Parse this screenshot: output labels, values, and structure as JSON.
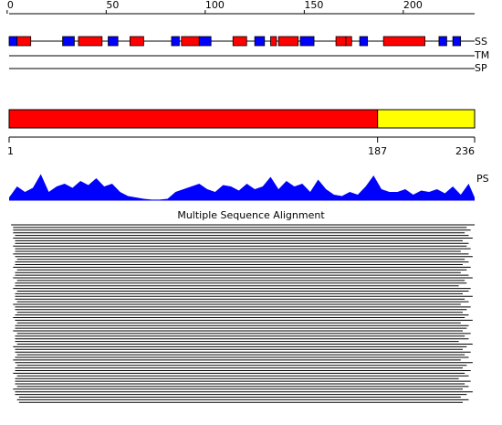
{
  "ruler": {
    "ticks": [
      0,
      50,
      100,
      150,
      200
    ]
  },
  "ss": {
    "label": "SS",
    "elements": [
      {
        "start": 1,
        "end": 4,
        "color": "#0000ff"
      },
      {
        "start": 5,
        "end": 11,
        "color": "#ff0000"
      },
      {
        "start": 28,
        "end": 33,
        "color": "#0000ff"
      },
      {
        "start": 36,
        "end": 47,
        "color": "#ff0000"
      },
      {
        "start": 51,
        "end": 55,
        "color": "#0000ff"
      },
      {
        "start": 62,
        "end": 68,
        "color": "#ff0000"
      },
      {
        "start": 83,
        "end": 86,
        "color": "#0000ff"
      },
      {
        "start": 88,
        "end": 96,
        "color": "#ff0000"
      },
      {
        "start": 97,
        "end": 102,
        "color": "#0000ff"
      },
      {
        "start": 114,
        "end": 120,
        "color": "#ff0000"
      },
      {
        "start": 125,
        "end": 129,
        "color": "#0000ff"
      },
      {
        "start": 133,
        "end": 135,
        "color": "#ff0000"
      },
      {
        "start": 137,
        "end": 146,
        "color": "#ff0000"
      },
      {
        "start": 148,
        "end": 154,
        "color": "#0000ff"
      },
      {
        "start": 166,
        "end": 170,
        "color": "#ff0000"
      },
      {
        "start": 171,
        "end": 173,
        "color": "#ff0000"
      },
      {
        "start": 178,
        "end": 181,
        "color": "#0000ff"
      },
      {
        "start": 190,
        "end": 210,
        "color": "#ff0000"
      },
      {
        "start": 218,
        "end": 221,
        "color": "#0000ff"
      },
      {
        "start": 225,
        "end": 228,
        "color": "#0000ff"
      }
    ]
  },
  "tm": {
    "label": "TM"
  },
  "sp": {
    "label": "SP"
  },
  "domains": {
    "segments": [
      {
        "start": 1,
        "end": 187,
        "color": "#ff0000"
      },
      {
        "start": 187,
        "end": 236,
        "color": "#ffff00"
      }
    ],
    "ticks": [
      1,
      187,
      236
    ]
  },
  "profile": {
    "label": "PS",
    "color": "#0000ff",
    "ylim": [
      0,
      1
    ],
    "x": [
      1,
      5,
      9,
      13,
      17,
      21,
      25,
      29,
      33,
      37,
      41,
      45,
      49,
      53,
      57,
      61,
      65,
      69,
      73,
      77,
      81,
      85,
      89,
      93,
      97,
      101,
      105,
      109,
      113,
      117,
      121,
      125,
      129,
      133,
      137,
      141,
      145,
      149,
      153,
      157,
      161,
      165,
      169,
      173,
      177,
      181,
      185,
      189,
      193,
      197,
      201,
      205,
      209,
      213,
      217,
      221,
      225,
      229,
      233,
      236
    ],
    "values": [
      0.1,
      0.5,
      0.3,
      0.45,
      0.95,
      0.3,
      0.5,
      0.6,
      0.45,
      0.7,
      0.55,
      0.8,
      0.5,
      0.6,
      0.3,
      0.15,
      0.1,
      0.05,
      0.02,
      0.02,
      0.05,
      0.3,
      0.4,
      0.5,
      0.6,
      0.4,
      0.3,
      0.55,
      0.5,
      0.35,
      0.6,
      0.4,
      0.5,
      0.85,
      0.4,
      0.7,
      0.5,
      0.6,
      0.3,
      0.75,
      0.4,
      0.2,
      0.15,
      0.3,
      0.2,
      0.5,
      0.9,
      0.4,
      0.3,
      0.3,
      0.4,
      0.2,
      0.35,
      0.3,
      0.4,
      0.25,
      0.5,
      0.2,
      0.6,
      0.1
    ]
  },
  "alignment": {
    "title": "Multiple Sequence Alignment",
    "rows": [
      [
        2,
        236
      ],
      [
        3,
        232
      ],
      [
        3,
        234
      ],
      [
        3,
        231
      ],
      [
        4,
        233
      ],
      [
        3,
        235
      ],
      [
        4,
        230
      ],
      [
        4,
        233
      ],
      [
        3,
        232
      ],
      [
        4,
        234
      ],
      [
        4,
        229
      ],
      [
        3,
        233
      ],
      [
        4,
        235
      ],
      [
        5,
        231
      ],
      [
        4,
        233
      ],
      [
        4,
        230
      ],
      [
        3,
        234
      ],
      [
        5,
        232
      ],
      [
        4,
        229
      ],
      [
        4,
        233
      ],
      [
        3,
        235
      ],
      [
        5,
        231
      ],
      [
        4,
        232
      ],
      [
        4,
        228
      ],
      [
        3,
        234
      ],
      [
        5,
        233
      ],
      [
        4,
        230
      ],
      [
        4,
        235
      ],
      [
        4,
        231
      ],
      [
        5,
        233
      ],
      [
        3,
        229
      ],
      [
        4,
        234
      ],
      [
        4,
        232
      ],
      [
        5,
        230
      ],
      [
        4,
        233
      ],
      [
        3,
        231
      ],
      [
        4,
        235
      ],
      [
        5,
        229
      ],
      [
        4,
        233
      ],
      [
        4,
        232
      ],
      [
        3,
        230
      ],
      [
        5,
        234
      ],
      [
        4,
        231
      ],
      [
        4,
        233
      ],
      [
        4,
        228
      ],
      [
        5,
        235
      ],
      [
        3,
        232
      ],
      [
        4,
        230
      ],
      [
        4,
        234
      ],
      [
        5,
        231
      ],
      [
        4,
        233
      ],
      [
        3,
        229
      ],
      [
        4,
        235
      ],
      [
        5,
        232
      ],
      [
        4,
        230
      ],
      [
        4,
        234
      ],
      [
        3,
        231
      ],
      [
        5,
        233
      ],
      [
        4,
        228
      ],
      [
        4,
        234
      ],
      [
        4,
        231
      ],
      [
        5,
        233
      ],
      [
        3,
        230
      ],
      [
        4,
        235
      ],
      [
        4,
        232
      ],
      [
        6,
        229
      ],
      [
        5,
        233
      ],
      [
        6,
        230
      ]
    ]
  }
}
